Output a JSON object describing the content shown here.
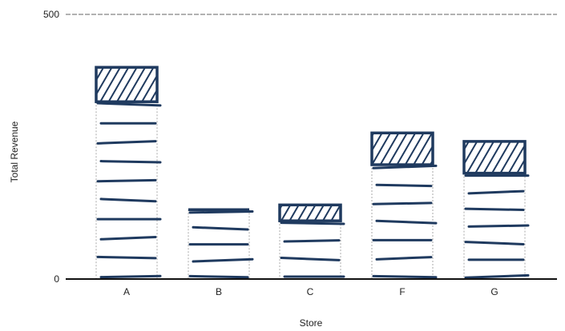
{
  "chart_data": {
    "type": "bar",
    "style": "hand-drawn sketch, stacked bars with hatched top segment",
    "xlabel": "Store",
    "ylabel": "Total Revenue",
    "categories": [
      "A",
      "B",
      "C",
      "F",
      "G"
    ],
    "ylim": [
      0,
      500
    ],
    "yticks": [
      0,
      500
    ],
    "grid": "dashed line at top tick",
    "series": [
      {
        "values": [
          335,
          131,
          110,
          216,
          200
        ],
        "fill": "horizontal scribble"
      },
      {
        "values": [
          65,
          0,
          30,
          60,
          60
        ],
        "fill": "diagonal hatch"
      }
    ],
    "colors": {
      "ink": "#1f3a5f",
      "axis": "#111111",
      "guide": "#aaaaaa"
    }
  }
}
